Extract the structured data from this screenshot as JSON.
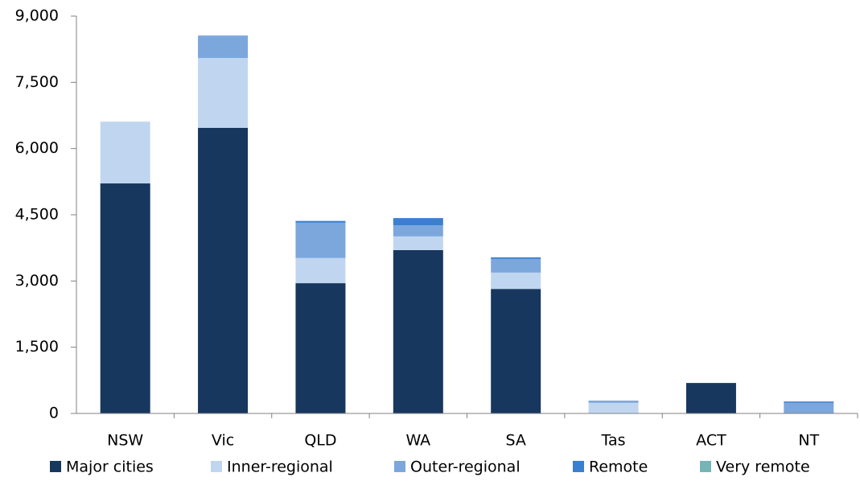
{
  "chart_data": {
    "type": "stacked_bar",
    "categories": [
      "NSW",
      "Vic",
      "QLD",
      "WA",
      "SA",
      "Tas",
      "ACT",
      "NT"
    ],
    "series": [
      {
        "name": "Major cities",
        "color": "#17375e",
        "values": [
          5210,
          6470,
          2950,
          3700,
          2820,
          0,
          690,
          0
        ]
      },
      {
        "name": "Inner-regional",
        "color": "#c0d6f0",
        "values": [
          1400,
          1580,
          570,
          310,
          370,
          240,
          0,
          0
        ]
      },
      {
        "name": "Outer-regional",
        "color": "#7ba7dc",
        "values": [
          0,
          510,
          800,
          250,
          310,
          50,
          0,
          240
        ]
      },
      {
        "name": "Remote",
        "color": "#3a7fd0",
        "values": [
          0,
          0,
          40,
          165,
          35,
          0,
          0,
          30
        ]
      },
      {
        "name": "Very remote",
        "color": "#76b5b5",
        "values": [
          0,
          0,
          0,
          0,
          0,
          0,
          0,
          0
        ]
      }
    ],
    "ylim": [
      0,
      9000
    ],
    "yticks": [
      0,
      {
        "value": 1500,
        "label": "1,500"
      },
      {
        "value": 3000,
        "label": "3,000"
      },
      {
        "value": 4500,
        "label": "4,500"
      },
      {
        "value": 6000,
        "label": "6,000"
      },
      {
        "value": 7500,
        "label": "7,500"
      },
      {
        "value": 9000,
        "label": "9,000"
      }
    ],
    "legend": "bottom"
  }
}
